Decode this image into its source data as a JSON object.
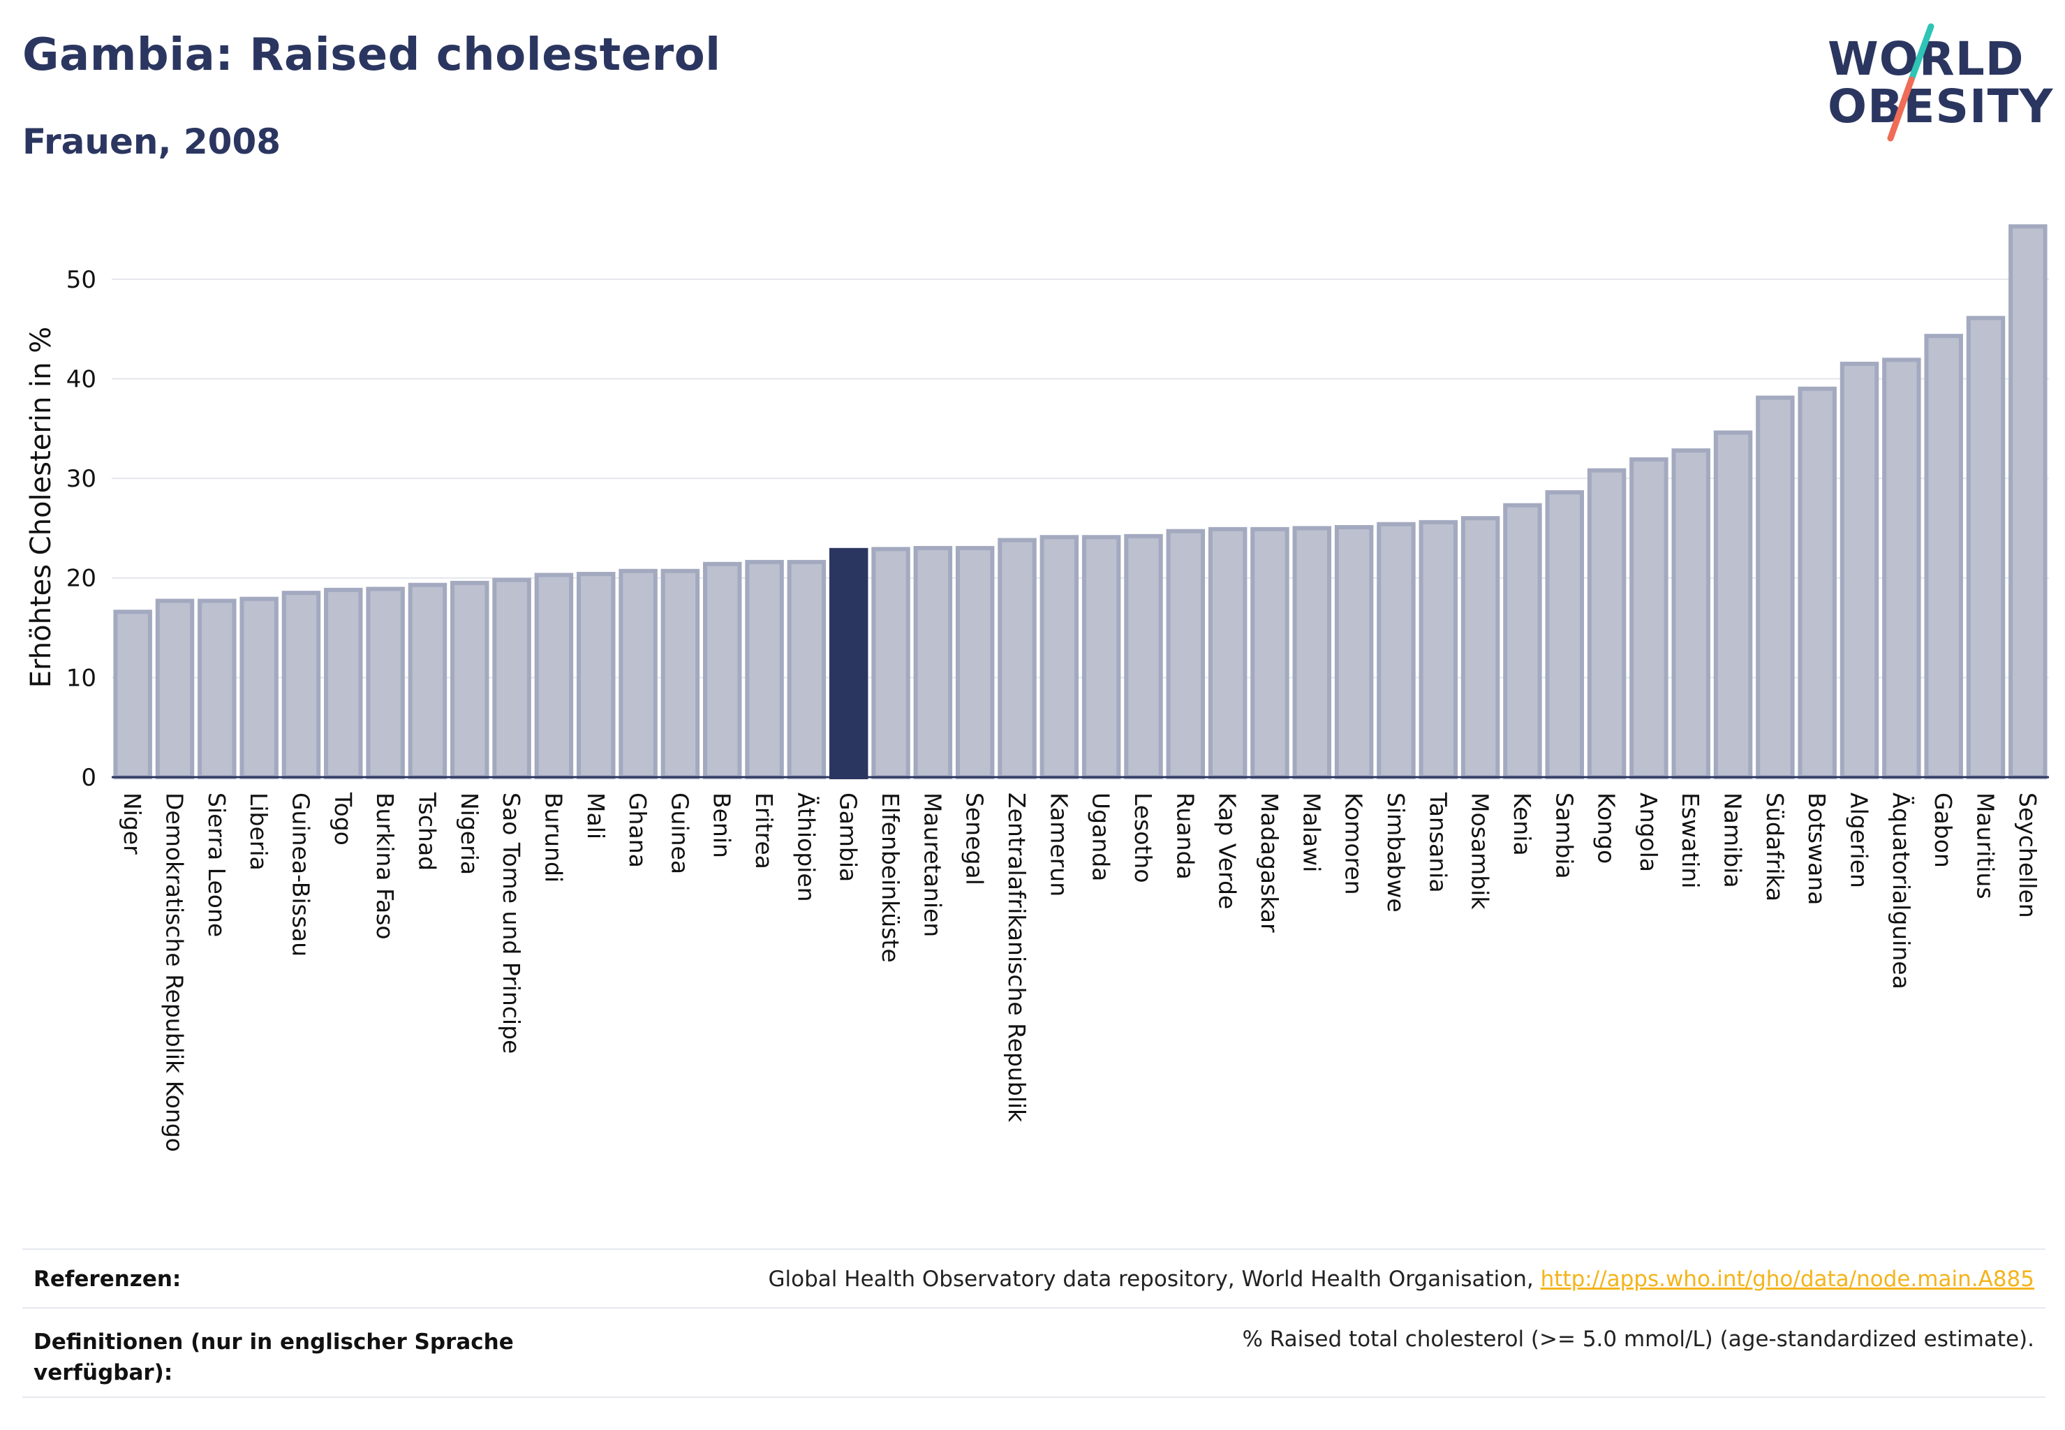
{
  "header": {
    "title": "Gambia: Raised cholesterol",
    "subtitle": "Frauen, 2008"
  },
  "logo": {
    "line1": "WORLD",
    "line2": "OBESITY",
    "slash_colors": [
      "#2ec4b6",
      "#ef6c57"
    ]
  },
  "chart_data": {
    "type": "bar",
    "ylabel": "Erhöhtes Cholesterin in %",
    "ylim": [
      0,
      57
    ],
    "yticks": [
      0,
      10,
      20,
      30,
      40,
      50
    ],
    "grid": true,
    "highlight": "Gambia",
    "colors": {
      "bar": "#bcc0cf",
      "bar_edge": "#a3a9bf",
      "highlight": "#2b3660"
    },
    "categories": [
      "Niger",
      "Demokratische Republik Kongo",
      "Sierra Leone",
      "Liberia",
      "Guinea-Bissau",
      "Togo",
      "Burkina Faso",
      "Tschad",
      "Nigeria",
      "Sao Tome und Principe",
      "Burundi",
      "Mali",
      "Ghana",
      "Guinea",
      "Benin",
      "Eritrea",
      "Äthiopien",
      "Gambia",
      "Elfenbeinküste",
      "Mauretanien",
      "Senegal",
      "Zentralafrikanische Republik",
      "Kamerun",
      "Uganda",
      "Lesotho",
      "Ruanda",
      "Kap Verde",
      "Madagaskar",
      "Malawi",
      "Komoren",
      "Simbabwe",
      "Tansania",
      "Mosambik",
      "Kenia",
      "Sambia",
      "Kongo",
      "Angola",
      "Eswatini",
      "Namibia",
      "Südafrika",
      "Botswana",
      "Algerien",
      "Äquatorialguinea",
      "Gabon",
      "Mauritius",
      "Seychellen"
    ],
    "values": [
      16.6,
      17.7,
      17.7,
      17.9,
      18.5,
      18.8,
      18.9,
      19.3,
      19.5,
      19.8,
      20.3,
      20.4,
      20.7,
      20.7,
      21.4,
      21.6,
      21.6,
      22.8,
      22.9,
      23.0,
      23.0,
      23.8,
      24.1,
      24.1,
      24.2,
      24.7,
      24.9,
      24.9,
      25.0,
      25.1,
      25.4,
      25.6,
      26.0,
      27.3,
      28.6,
      30.8,
      31.9,
      32.8,
      34.6,
      38.1,
      39.0,
      41.5,
      41.9,
      44.3,
      46.1,
      55.3
    ]
  },
  "footer": {
    "references_label": "Referenzen:",
    "references_text": "Global Health Observatory data repository, World Health Organisation, ",
    "references_link": "http://apps.who.int/gho/data/node.main.A885",
    "definitions_label": "Definitionen (nur in englischer Sprache verfügbar):",
    "definitions_text": "% Raised total cholesterol (>= 5.0 mmol/L) (age-standardized estimate)."
  }
}
